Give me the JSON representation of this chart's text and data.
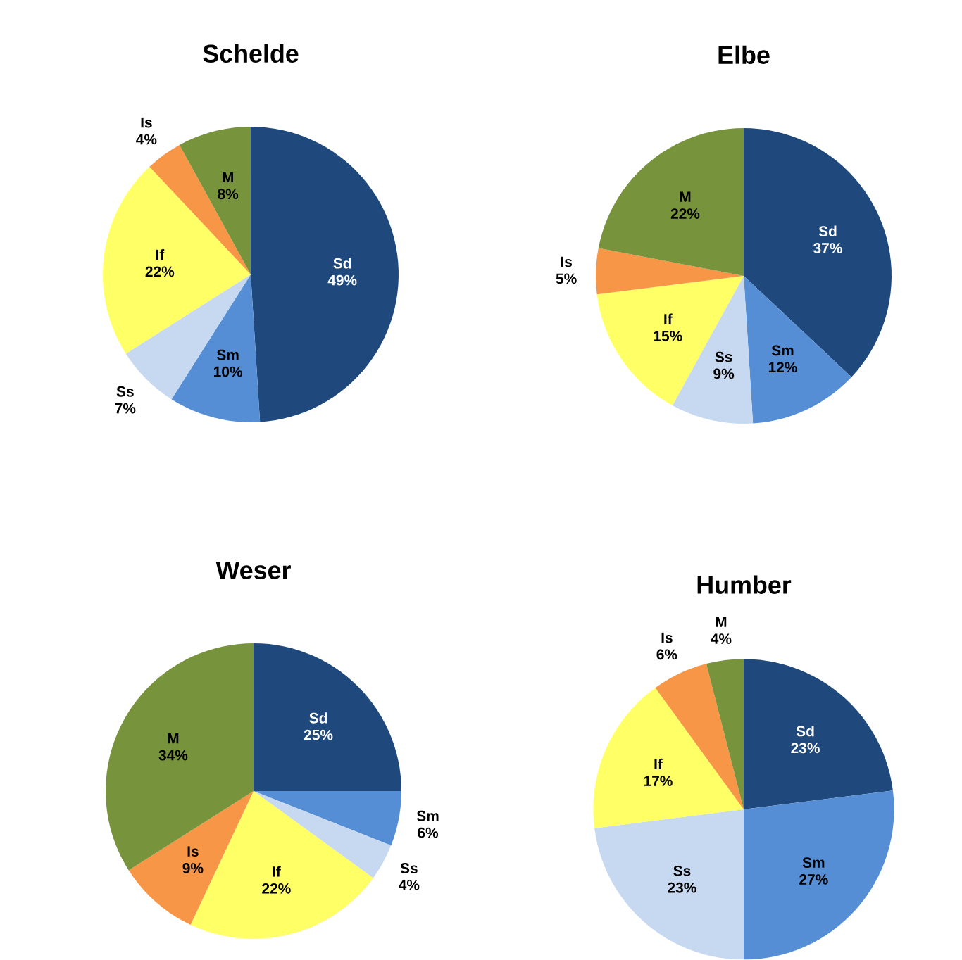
{
  "chart_data": [
    {
      "type": "pie",
      "title": "Schelde",
      "categories": [
        "Sd",
        "Sm",
        "Ss",
        "If",
        "Is",
        "M"
      ],
      "values": [
        49,
        10,
        7,
        22,
        4,
        8
      ],
      "value_labels": [
        "49%",
        "10%",
        "7%",
        "22%",
        "4%",
        "8%"
      ],
      "colors": [
        "#1f497d",
        "#558ed5",
        "#c6d9f1",
        "#ffff66",
        "#f79646",
        "#77933c"
      ]
    },
    {
      "type": "pie",
      "title": "Elbe",
      "categories": [
        "Sd",
        "Sm",
        "Ss",
        "If",
        "Is",
        "M"
      ],
      "values": [
        37,
        12,
        9,
        15,
        5,
        22
      ],
      "value_labels": [
        "37%",
        "12%",
        "9%",
        "15%",
        "5%",
        "22%"
      ],
      "colors": [
        "#1f497d",
        "#558ed5",
        "#c6d9f1",
        "#ffff66",
        "#f79646",
        "#77933c"
      ]
    },
    {
      "type": "pie",
      "title": "Weser",
      "categories": [
        "Sd",
        "Sm",
        "Ss",
        "If",
        "Is",
        "M"
      ],
      "values": [
        25,
        6,
        4,
        22,
        9,
        34
      ],
      "value_labels": [
        "25%",
        "6%",
        "4%",
        "22%",
        "9%",
        "34%"
      ],
      "colors": [
        "#1f497d",
        "#558ed5",
        "#c6d9f1",
        "#ffff66",
        "#f79646",
        "#77933c"
      ]
    },
    {
      "type": "pie",
      "title": "Humber",
      "categories": [
        "Sd",
        "Sm",
        "Ss",
        "If",
        "Is",
        "M"
      ],
      "values": [
        23,
        27,
        23,
        17,
        6,
        4
      ],
      "value_labels": [
        "23%",
        "27%",
        "23%",
        "17%",
        "6%",
        "4%"
      ],
      "colors": [
        "#1f497d",
        "#558ed5",
        "#c6d9f1",
        "#ffff66",
        "#f79646",
        "#77933c"
      ]
    }
  ]
}
